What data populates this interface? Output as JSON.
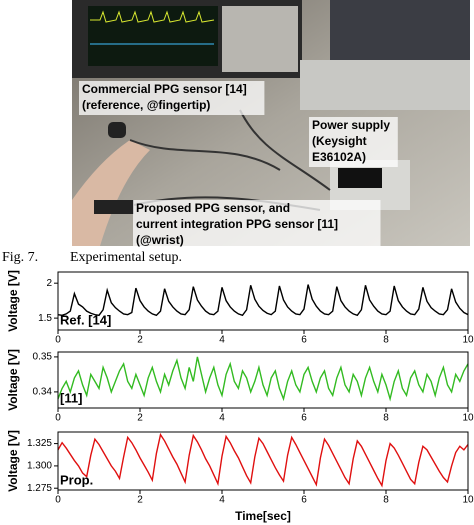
{
  "photo": {
    "labels": [
      {
        "lines": [
          "Commercial PPG sensor [14]",
          "(reference, @fingertip)"
        ]
      },
      {
        "lines": [
          "Power supply",
          "(Keysight",
          "E36102A)"
        ]
      },
      {
        "lines": [
          "Proposed PPG sensor, and",
          "current integration PPG sensor [11]",
          "(@wrist)"
        ]
      }
    ]
  },
  "caption": {
    "number": "Fig. 7.",
    "text": "Experimental setup."
  },
  "chart_data": [
    {
      "type": "line",
      "ylabel": "Voltage [V]",
      "x": [
        0,
        0.1,
        0.2,
        0.3,
        0.4,
        0.5,
        0.6,
        0.7,
        0.8,
        0.9,
        1,
        1.1,
        1.2,
        1.3,
        1.4,
        1.5,
        1.6,
        1.7,
        1.8,
        1.9,
        2,
        2.1,
        2.2,
        2.3,
        2.4,
        2.5,
        2.6,
        2.7,
        2.8,
        2.9,
        3,
        3.1,
        3.2,
        3.3,
        3.4,
        3.5,
        3.6,
        3.7,
        3.8,
        3.9,
        4,
        4.1,
        4.2,
        4.3,
        4.4,
        4.5,
        4.6,
        4.7,
        4.8,
        4.9,
        5,
        5.1,
        5.2,
        5.3,
        5.4,
        5.5,
        5.6,
        5.7,
        5.8,
        5.9,
        6,
        6.1,
        6.2,
        6.3,
        6.4,
        6.5,
        6.6,
        6.7,
        6.8,
        6.9,
        7,
        7.1,
        7.2,
        7.3,
        7.4,
        7.5,
        7.6,
        7.7,
        7.8,
        7.9,
        8,
        8.1,
        8.2,
        8.3,
        8.4,
        8.5,
        8.6,
        8.7,
        8.8,
        8.9,
        9,
        9.1,
        9.2,
        9.3,
        9.4,
        9.5,
        9.6,
        9.7,
        9.8,
        9.9,
        10
      ],
      "series": [
        {
          "name": "Ref. [14]",
          "color": "#000000",
          "values": [
            1.55,
            1.54,
            1.56,
            1.6,
            1.85,
            1.7,
            1.66,
            1.6,
            1.57,
            1.55,
            1.54,
            1.62,
            1.9,
            1.72,
            1.65,
            1.6,
            1.56,
            1.55,
            1.58,
            1.93,
            1.75,
            1.66,
            1.6,
            1.56,
            1.54,
            1.6,
            1.92,
            1.74,
            1.66,
            1.6,
            1.56,
            1.55,
            1.62,
            1.95,
            1.76,
            1.67,
            1.6,
            1.56,
            1.55,
            1.6,
            1.94,
            1.75,
            1.66,
            1.6,
            1.56,
            1.54,
            1.62,
            1.97,
            1.77,
            1.67,
            1.61,
            1.57,
            1.55,
            1.6,
            1.96,
            1.76,
            1.66,
            1.6,
            1.56,
            1.55,
            1.63,
            1.98,
            1.77,
            1.67,
            1.6,
            1.56,
            1.55,
            1.6,
            1.95,
            1.75,
            1.66,
            1.6,
            1.56,
            1.54,
            1.62,
            1.97,
            1.76,
            1.67,
            1.6,
            1.56,
            1.55,
            1.6,
            1.96,
            1.75,
            1.66,
            1.6,
            1.56,
            1.55,
            1.63,
            1.94,
            1.74,
            1.65,
            1.6,
            1.56,
            1.55,
            1.62,
            1.92,
            1.73,
            1.64,
            1.58,
            1.55
          ]
        }
      ],
      "xlim": [
        0,
        10
      ],
      "xticks": [
        0,
        2,
        4,
        6,
        8,
        10
      ],
      "ylim": [
        1.33,
        2.16
      ],
      "yticks": [
        1.5,
        2.0
      ]
    },
    {
      "type": "line",
      "ylabel": "Voltage [V]",
      "x": [
        0,
        0.1,
        0.2,
        0.3,
        0.4,
        0.5,
        0.6,
        0.7,
        0.8,
        0.9,
        1,
        1.1,
        1.2,
        1.3,
        1.4,
        1.5,
        1.6,
        1.7,
        1.8,
        1.9,
        2,
        2.1,
        2.2,
        2.3,
        2.4,
        2.5,
        2.6,
        2.7,
        2.8,
        2.9,
        3,
        3.1,
        3.2,
        3.3,
        3.4,
        3.5,
        3.6,
        3.7,
        3.8,
        3.9,
        4,
        4.1,
        4.2,
        4.3,
        4.4,
        4.5,
        4.6,
        4.7,
        4.8,
        4.9,
        5,
        5.1,
        5.2,
        5.3,
        5.4,
        5.5,
        5.6,
        5.7,
        5.8,
        5.9,
        6,
        6.1,
        6.2,
        6.3,
        6.4,
        6.5,
        6.6,
        6.7,
        6.8,
        6.9,
        7,
        7.1,
        7.2,
        7.3,
        7.4,
        7.5,
        7.6,
        7.7,
        7.8,
        7.9,
        8,
        8.1,
        8.2,
        8.3,
        8.4,
        8.5,
        8.6,
        8.7,
        8.8,
        8.9,
        9,
        9.1,
        9.2,
        9.3,
        9.4,
        9.5,
        9.6,
        9.7,
        9.8,
        9.9,
        10
      ],
      "series": [
        {
          "name": "[11]",
          "color": "#33bb22",
          "values": [
            0.338,
            0.341,
            0.343,
            0.34,
            0.344,
            0.346,
            0.342,
            0.339,
            0.345,
            0.343,
            0.341,
            0.347,
            0.344,
            0.34,
            0.343,
            0.346,
            0.348,
            0.343,
            0.341,
            0.345,
            0.342,
            0.339,
            0.344,
            0.347,
            0.343,
            0.34,
            0.345,
            0.342,
            0.346,
            0.349,
            0.344,
            0.341,
            0.347,
            0.343,
            0.35,
            0.345,
            0.34,
            0.344,
            0.347,
            0.342,
            0.339,
            0.345,
            0.348,
            0.343,
            0.341,
            0.346,
            0.344,
            0.34,
            0.343,
            0.347,
            0.342,
            0.339,
            0.344,
            0.346,
            0.341,
            0.338,
            0.343,
            0.346,
            0.342,
            0.34,
            0.345,
            0.347,
            0.343,
            0.34,
            0.344,
            0.346,
            0.341,
            0.339,
            0.344,
            0.347,
            0.342,
            0.34,
            0.345,
            0.343,
            0.339,
            0.344,
            0.347,
            0.343,
            0.34,
            0.345,
            0.342,
            0.338,
            0.343,
            0.346,
            0.341,
            0.339,
            0.344,
            0.346,
            0.342,
            0.34,
            0.345,
            0.343,
            0.339,
            0.344,
            0.347,
            0.342,
            0.34,
            0.345,
            0.343,
            0.346,
            0.348
          ]
        }
      ],
      "xlim": [
        0,
        10
      ],
      "xticks": [
        0,
        2,
        4,
        6,
        8,
        10
      ],
      "ylim": [
        0.3354,
        0.3514
      ],
      "yticks": [
        0.34,
        0.35
      ]
    },
    {
      "type": "line",
      "ylabel": "Voltage [V]",
      "xlabel": "Time[sec]",
      "x": [
        0,
        0.1,
        0.2,
        0.3,
        0.4,
        0.5,
        0.6,
        0.7,
        0.8,
        0.9,
        1,
        1.1,
        1.2,
        1.3,
        1.4,
        1.5,
        1.6,
        1.7,
        1.8,
        1.9,
        2,
        2.1,
        2.2,
        2.3,
        2.4,
        2.5,
        2.6,
        2.7,
        2.8,
        2.9,
        3,
        3.1,
        3.2,
        3.3,
        3.4,
        3.5,
        3.6,
        3.7,
        3.8,
        3.9,
        4,
        4.1,
        4.2,
        4.3,
        4.4,
        4.5,
        4.6,
        4.7,
        4.8,
        4.9,
        5,
        5.1,
        5.2,
        5.3,
        5.4,
        5.5,
        5.6,
        5.7,
        5.8,
        5.9,
        6,
        6.1,
        6.2,
        6.3,
        6.4,
        6.5,
        6.6,
        6.7,
        6.8,
        6.9,
        7,
        7.1,
        7.2,
        7.3,
        7.4,
        7.5,
        7.6,
        7.7,
        7.8,
        7.9,
        8,
        8.1,
        8.2,
        8.3,
        8.4,
        8.5,
        8.6,
        8.7,
        8.8,
        8.9,
        9,
        9.1,
        9.2,
        9.3,
        9.4,
        9.5,
        9.6,
        9.7,
        9.8,
        9.9,
        10
      ],
      "series": [
        {
          "name": "Prop.",
          "color": "#e01010",
          "values": [
            1.318,
            1.326,
            1.32,
            1.313,
            1.306,
            1.3,
            1.292,
            1.288,
            1.312,
            1.33,
            1.324,
            1.316,
            1.308,
            1.3,
            1.294,
            1.286,
            1.31,
            1.332,
            1.326,
            1.318,
            1.309,
            1.301,
            1.293,
            1.284,
            1.314,
            1.335,
            1.328,
            1.319,
            1.31,
            1.302,
            1.292,
            1.282,
            1.312,
            1.334,
            1.327,
            1.318,
            1.308,
            1.3,
            1.29,
            1.28,
            1.311,
            1.333,
            1.326,
            1.317,
            1.309,
            1.299,
            1.289,
            1.281,
            1.31,
            1.331,
            1.325,
            1.316,
            1.307,
            1.298,
            1.29,
            1.283,
            1.312,
            1.332,
            1.324,
            1.315,
            1.306,
            1.297,
            1.288,
            1.279,
            1.309,
            1.33,
            1.323,
            1.314,
            1.305,
            1.296,
            1.287,
            1.28,
            1.308,
            1.328,
            1.322,
            1.313,
            1.304,
            1.295,
            1.286,
            1.278,
            1.306,
            1.325,
            1.32,
            1.312,
            1.303,
            1.294,
            1.285,
            1.28,
            1.304,
            1.322,
            1.318,
            1.31,
            1.302,
            1.294,
            1.287,
            1.282,
            1.3,
            1.315,
            1.322,
            1.318,
            1.324
          ]
        }
      ],
      "xlim": [
        0,
        10
      ],
      "xticks": [
        0,
        2,
        4,
        6,
        8,
        10
      ],
      "ylim": [
        1.273,
        1.338
      ],
      "yticks": [
        1.275,
        {
          "value": 1.3,
          "label": "1.300"
        },
        1.325
      ]
    }
  ]
}
